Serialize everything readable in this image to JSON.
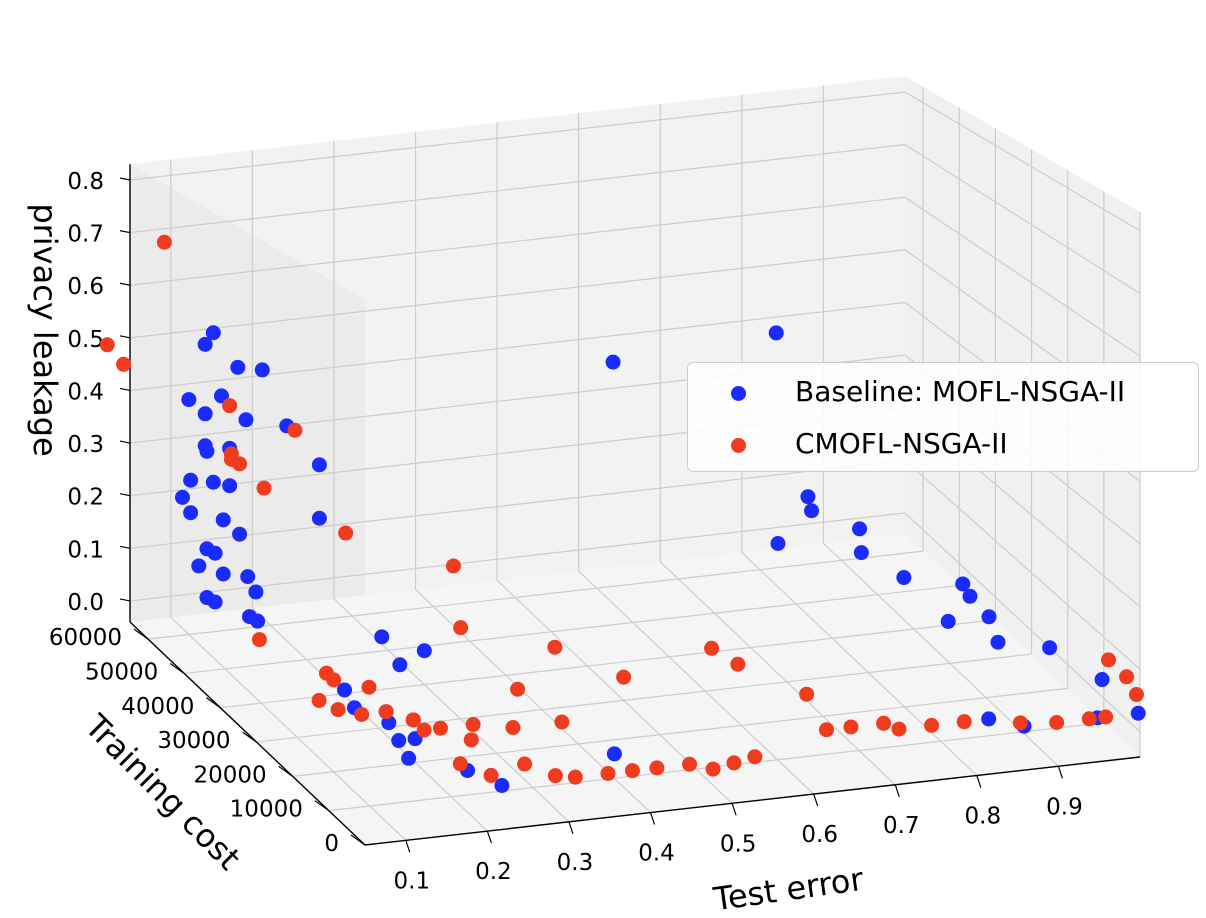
{
  "chart_data": {
    "type": "scatter3d",
    "xlabel": "Test error",
    "ylabel": "Training cost",
    "zlabel": "privacy leakage",
    "x_ticks": [
      "0.1",
      "0.2",
      "0.3",
      "0.4",
      "0.5",
      "0.6",
      "0.7",
      "0.8",
      "0.9"
    ],
    "y_ticks": [
      "0",
      "10000",
      "20000",
      "30000",
      "40000",
      "50000",
      "60000"
    ],
    "z_ticks": [
      "0.0",
      "0.1",
      "0.2",
      "0.3",
      "0.4",
      "0.5",
      "0.6",
      "0.7",
      "0.8"
    ],
    "legend": [
      {
        "name": "Baseline: MOFL-NSGA-II",
        "color": "#1a2bff"
      },
      {
        "name": "CMOFL-NSGA-II",
        "color": "#f03c1e"
      }
    ],
    "series": [
      {
        "name": "Baseline: MOFL-NSGA-II",
        "color": "#1a2bff",
        "points": [
          [
            0.12,
            60000,
            0.5
          ],
          [
            0.13,
            60000,
            0.52
          ],
          [
            0.16,
            60000,
            0.45
          ],
          [
            0.19,
            60000,
            0.44
          ],
          [
            0.14,
            60000,
            0.4
          ],
          [
            0.22,
            60000,
            0.33
          ],
          [
            0.26,
            60000,
            0.25
          ],
          [
            0.26,
            60000,
            0.15
          ],
          [
            0.17,
            60000,
            0.35
          ],
          [
            0.13,
            60000,
            0.24
          ],
          [
            0.15,
            60000,
            0.23
          ],
          [
            0.12,
            60000,
            0.31
          ],
          [
            0.15,
            60000,
            0.3
          ],
          [
            0.1,
            60000,
            0.4
          ],
          [
            0.12,
            60000,
            0.37
          ],
          [
            0.1,
            55000,
            0.33
          ],
          [
            0.08,
            55000,
            0.28
          ],
          [
            0.07,
            55000,
            0.25
          ],
          [
            0.08,
            55000,
            0.22
          ],
          [
            0.12,
            55000,
            0.2
          ],
          [
            0.14,
            55000,
            0.17
          ],
          [
            0.1,
            55000,
            0.15
          ],
          [
            0.11,
            55000,
            0.14
          ],
          [
            0.09,
            55000,
            0.12
          ],
          [
            0.12,
            55000,
            0.1
          ],
          [
            0.15,
            55000,
            0.09
          ],
          [
            0.16,
            55000,
            0.06
          ],
          [
            0.1,
            55000,
            0.06
          ],
          [
            0.11,
            55000,
            0.05
          ],
          [
            0.13,
            50000,
            0.05
          ],
          [
            0.14,
            50000,
            0.04
          ],
          [
            0.27,
            45000,
            0.02
          ],
          [
            0.3,
            40000,
            0.02
          ],
          [
            0.27,
            40000,
            0.0
          ],
          [
            0.18,
            35000,
            0.0
          ],
          [
            0.17,
            30000,
            0.0
          ],
          [
            0.2,
            28000,
            0.0
          ],
          [
            0.22,
            25000,
            0.0
          ],
          [
            0.19,
            25000,
            0.0
          ],
          [
            0.2,
            20000,
            0.0
          ],
          [
            0.18,
            20000,
            0.0
          ],
          [
            0.17,
            15000,
            0.0
          ],
          [
            0.22,
            10000,
            0.0
          ],
          [
            0.24,
            5000,
            0.0
          ],
          [
            0.4,
            10000,
            0.0
          ],
          [
            0.62,
            60000,
            0.38
          ],
          [
            0.82,
            60000,
            0.4
          ],
          [
            0.85,
            58000,
            0.1
          ],
          [
            0.85,
            57000,
            0.08
          ],
          [
            0.8,
            55000,
            0.04
          ],
          [
            0.9,
            55000,
            0.05
          ],
          [
            0.88,
            50000,
            0.04
          ],
          [
            0.91,
            45000,
            0.02
          ],
          [
            0.96,
            40000,
            0.03
          ],
          [
            0.96,
            38000,
            0.02
          ],
          [
            0.92,
            35000,
            0.0
          ],
          [
            0.97,
            35000,
            0.0
          ],
          [
            0.95,
            28000,
            0.0
          ],
          [
            1.0,
            25000,
            0.0
          ],
          [
            1.02,
            15000,
            0.0
          ],
          [
            0.85,
            8000,
            0.0
          ],
          [
            0.88,
            5000,
            0.0
          ],
          [
            0.97,
            5000,
            0.0
          ],
          [
            1.02,
            5000,
            0.0
          ]
        ]
      },
      {
        "name": "CMOFL-NSGA-II",
        "color": "#f03c1e",
        "points": [
          [
            0.07,
            60000,
            0.7
          ],
          [
            0.0,
            60000,
            0.52
          ],
          [
            0.02,
            60000,
            0.48
          ],
          [
            0.15,
            60000,
            0.38
          ],
          [
            0.23,
            60000,
            0.32
          ],
          [
            0.13,
            55000,
            0.32
          ],
          [
            0.13,
            55000,
            0.31
          ],
          [
            0.14,
            55000,
            0.3
          ],
          [
            0.17,
            55000,
            0.25
          ],
          [
            0.27,
            55000,
            0.15
          ],
          [
            0.38,
            50000,
            0.1
          ],
          [
            0.38,
            48000,
            0.0
          ],
          [
            0.12,
            45000,
            0.04
          ],
          [
            0.18,
            40000,
            0.0
          ],
          [
            0.18,
            38000,
            0.0
          ],
          [
            0.21,
            35000,
            0.0
          ],
          [
            0.14,
            33000,
            0.0
          ],
          [
            0.15,
            30000,
            0.0
          ],
          [
            0.17,
            28000,
            0.0
          ],
          [
            0.2,
            28000,
            0.0
          ],
          [
            0.22,
            25000,
            0.0
          ],
          [
            0.22,
            22000,
            0.0
          ],
          [
            0.24,
            22000,
            0.0
          ],
          [
            0.28,
            22000,
            0.0
          ],
          [
            0.26,
            18000,
            0.0
          ],
          [
            0.32,
            20000,
            0.0
          ],
          [
            0.37,
            30000,
            0.0
          ],
          [
            0.38,
            20000,
            0.0
          ],
          [
            0.46,
            40000,
            0.0
          ],
          [
            0.5,
            30000,
            0.0
          ],
          [
            0.22,
            12000,
            0.0
          ],
          [
            0.24,
            8000,
            0.0
          ],
          [
            0.29,
            10000,
            0.0
          ],
          [
            0.31,
            6000,
            0.0
          ],
          [
            0.33,
            5000,
            0.0
          ],
          [
            0.37,
            5000,
            0.0
          ],
          [
            0.4,
            5000,
            0.0
          ],
          [
            0.43,
            5000,
            0.0
          ],
          [
            0.47,
            5000,
            0.0
          ],
          [
            0.49,
            3000,
            0.0
          ],
          [
            0.52,
            4000,
            0.0
          ],
          [
            0.55,
            5000,
            0.0
          ],
          [
            0.63,
            35000,
            0.0
          ],
          [
            0.64,
            30000,
            0.0
          ],
          [
            0.68,
            20000,
            0.0
          ],
          [
            0.66,
            10000,
            0.0
          ],
          [
            0.69,
            10000,
            0.0
          ],
          [
            0.73,
            10000,
            0.0
          ],
          [
            0.74,
            8000,
            0.0
          ],
          [
            0.78,
            8000,
            0.0
          ],
          [
            0.82,
            8000,
            0.0
          ],
          [
            0.88,
            6000,
            0.0
          ],
          [
            0.92,
            5000,
            0.0
          ],
          [
            0.96,
            5000,
            0.0
          ],
          [
            0.98,
            5000,
            0.0
          ],
          [
            1.04,
            10000,
            0.0
          ],
          [
            1.05,
            15000,
            0.0
          ],
          [
            1.05,
            20000,
            0.0
          ]
        ]
      }
    ]
  }
}
